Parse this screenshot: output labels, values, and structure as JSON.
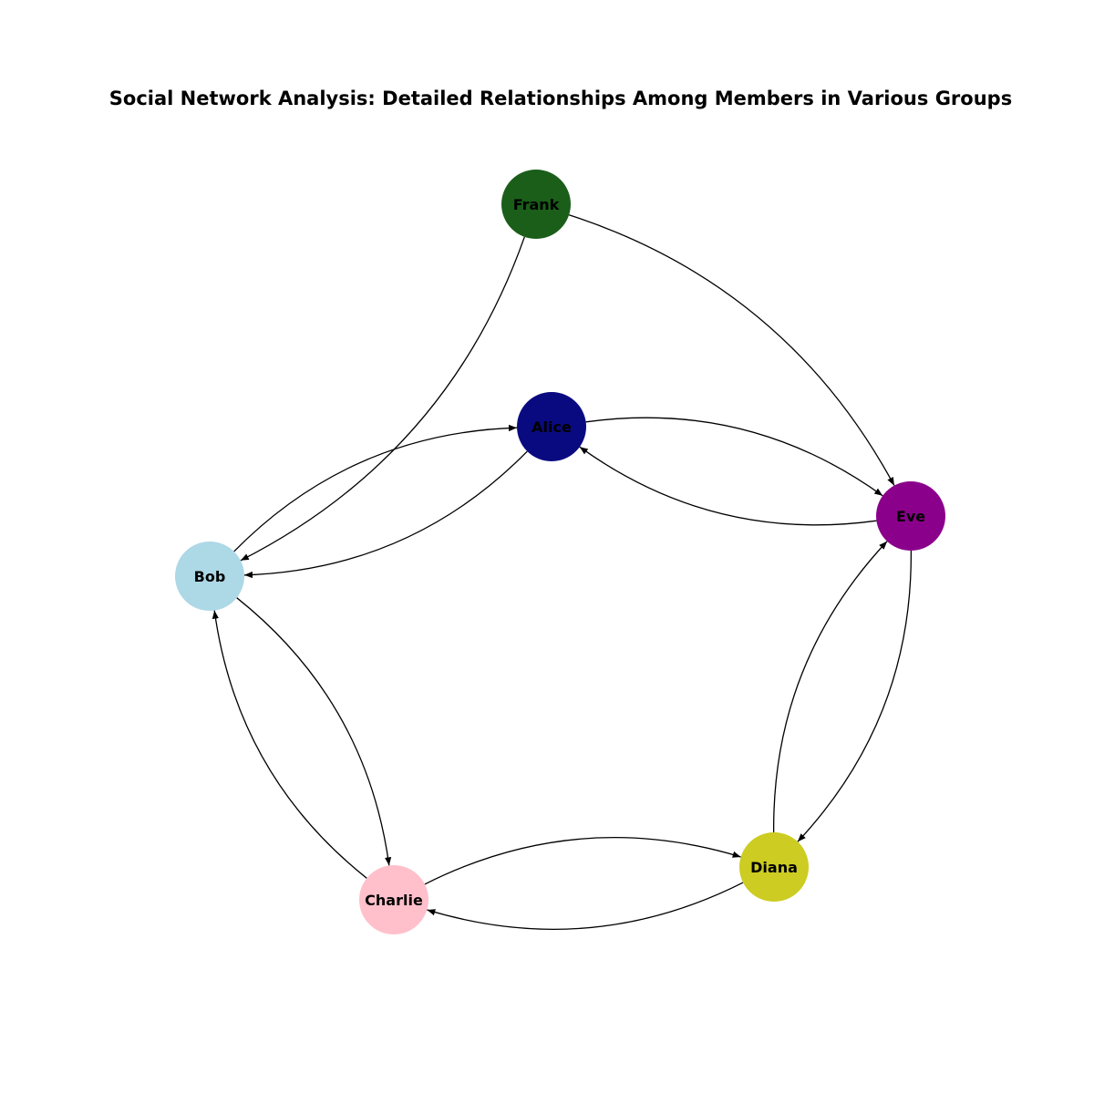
{
  "title": "Social Network Analysis: Detailed Relationships Among Members in Various Groups",
  "nodes": [
    {
      "id": "Frank",
      "label": "Frank",
      "color": "#1a5e1a"
    },
    {
      "id": "Alice",
      "label": "Alice",
      "color": "#0a0a80"
    },
    {
      "id": "Eve",
      "label": "Eve",
      "color": "#8b008b"
    },
    {
      "id": "Bob",
      "label": "Bob",
      "color": "#add8e6"
    },
    {
      "id": "Charlie",
      "label": "Charlie",
      "color": "#ffc0cb"
    },
    {
      "id": "Diana",
      "label": "Diana",
      "color": "#cccc22"
    }
  ],
  "edges": [
    {
      "source": "Frank",
      "target": "Bob"
    },
    {
      "source": "Frank",
      "target": "Eve"
    },
    {
      "source": "Alice",
      "target": "Bob"
    },
    {
      "source": "Bob",
      "target": "Alice"
    },
    {
      "source": "Alice",
      "target": "Eve"
    },
    {
      "source": "Eve",
      "target": "Alice"
    },
    {
      "source": "Bob",
      "target": "Charlie"
    },
    {
      "source": "Charlie",
      "target": "Bob"
    },
    {
      "source": "Eve",
      "target": "Diana"
    },
    {
      "source": "Diana",
      "target": "Eve"
    },
    {
      "source": "Diana",
      "target": "Charlie"
    },
    {
      "source": "Charlie",
      "target": "Diana"
    }
  ]
}
